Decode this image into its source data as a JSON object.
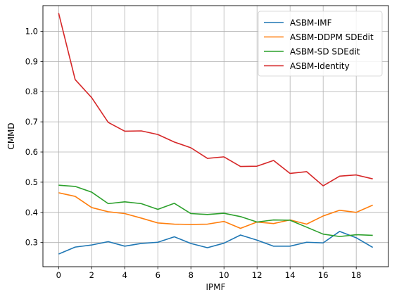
{
  "chart_data": {
    "type": "line",
    "xlabel": "IPMF",
    "ylabel": "CMMD",
    "xlim": [
      -0.95,
      19.95
    ],
    "ylim": [
      0.22,
      1.085
    ],
    "xticks": [
      0,
      2,
      4,
      6,
      8,
      10,
      12,
      14,
      16,
      18
    ],
    "yticks": [
      0.3,
      0.4,
      0.5,
      0.6,
      0.7,
      0.8,
      0.9,
      1.0
    ],
    "ytick_labels": [
      "0.3",
      "0.4",
      "0.5",
      "0.6",
      "0.7",
      "0.8",
      "0.9",
      "1.0"
    ],
    "grid": true,
    "legend_position": "top-right",
    "x": [
      0,
      1,
      2,
      3,
      4,
      5,
      6,
      7,
      8,
      9,
      10,
      11,
      12,
      13,
      14,
      15,
      16,
      17,
      18,
      19
    ],
    "series": [
      {
        "name": "ASBM-IMF",
        "color": "#1f77b4",
        "values": [
          0.262,
          0.285,
          0.292,
          0.303,
          0.288,
          0.297,
          0.301,
          0.319,
          0.297,
          0.283,
          0.298,
          0.325,
          0.308,
          0.288,
          0.288,
          0.301,
          0.299,
          0.337,
          0.316,
          0.284
        ]
      },
      {
        "name": "ASBM-DDPM SDEdit",
        "color": "#ff7f0e",
        "values": [
          0.465,
          0.453,
          0.416,
          0.402,
          0.396,
          0.381,
          0.365,
          0.361,
          0.36,
          0.361,
          0.37,
          0.347,
          0.368,
          0.363,
          0.375,
          0.361,
          0.388,
          0.407,
          0.4,
          0.424
        ]
      },
      {
        "name": "ASBM-SD SDEdit",
        "color": "#2ca02c",
        "values": [
          0.49,
          0.486,
          0.467,
          0.429,
          0.435,
          0.429,
          0.41,
          0.43,
          0.396,
          0.393,
          0.397,
          0.386,
          0.368,
          0.375,
          0.374,
          0.351,
          0.328,
          0.32,
          0.326,
          0.324
        ]
      },
      {
        "name": "ASBM-Identity",
        "color": "#d62728",
        "values": [
          1.06,
          0.84,
          0.78,
          0.698,
          0.669,
          0.67,
          0.658,
          0.633,
          0.614,
          0.579,
          0.584,
          0.552,
          0.553,
          0.572,
          0.529,
          0.535,
          0.488,
          0.52,
          0.524,
          0.511
        ]
      }
    ]
  }
}
